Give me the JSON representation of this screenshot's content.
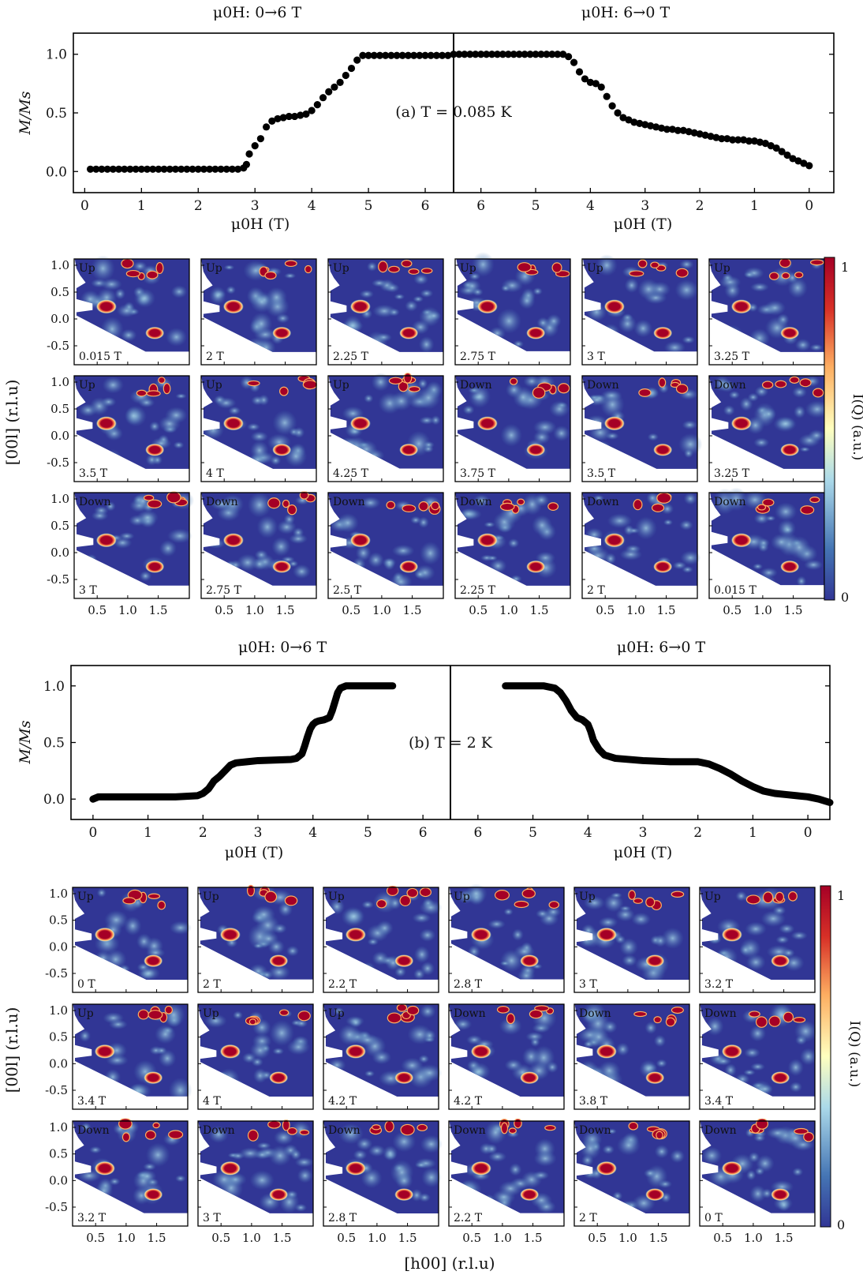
{
  "colorbar": {
    "max_label": "1",
    "min_label": "0",
    "label": "I(Q) (a.u.)",
    "colors": [
      "#313695",
      "#4575b4",
      "#abd9e9",
      "#ffffbf",
      "#fdae61",
      "#d73027",
      "#a50026"
    ]
  },
  "chart_data": [
    {
      "type": "scatter",
      "panel": "a",
      "title_left": "μ0H: 0→6 T",
      "title_right": "μ0H: 6→0 T",
      "annotation": "(a) T = 0.085 K",
      "xlabel_left": "μ0H (T)",
      "xlabel_right": "μ0H (T)",
      "ylabel": "M/Ms",
      "ylim": [
        -0.18,
        1.18
      ],
      "yticks": [
        0.0,
        0.5,
        1.0
      ],
      "xlim_left": [
        -0.2,
        6.5
      ],
      "xlim_right": [
        6.5,
        -0.45
      ],
      "xticks_left": [
        0,
        1,
        2,
        3,
        4,
        5,
        6
      ],
      "xticks_right": [
        6,
        5,
        4,
        3,
        2,
        1,
        0
      ],
      "series_up": {
        "x": [
          0.1,
          0.2,
          0.3,
          0.4,
          0.5,
          0.6,
          0.7,
          0.8,
          0.9,
          1.0,
          1.1,
          1.2,
          1.3,
          1.4,
          1.5,
          1.6,
          1.7,
          1.8,
          1.9,
          2.0,
          2.1,
          2.2,
          2.3,
          2.4,
          2.5,
          2.6,
          2.7,
          2.8,
          2.85,
          2.9,
          3.0,
          3.1,
          3.2,
          3.3,
          3.4,
          3.5,
          3.6,
          3.7,
          3.8,
          3.9,
          4.0,
          4.1,
          4.2,
          4.3,
          4.4,
          4.5,
          4.6,
          4.7,
          4.8,
          4.9,
          5.0,
          5.1,
          5.2,
          5.3,
          5.4,
          5.5,
          5.6,
          5.7,
          5.8,
          5.9,
          6.0,
          6.1,
          6.2,
          6.3,
          6.4
        ],
        "y": [
          0.02,
          0.02,
          0.02,
          0.02,
          0.02,
          0.02,
          0.02,
          0.02,
          0.02,
          0.02,
          0.02,
          0.02,
          0.02,
          0.02,
          0.02,
          0.02,
          0.02,
          0.02,
          0.02,
          0.02,
          0.02,
          0.02,
          0.02,
          0.02,
          0.02,
          0.02,
          0.02,
          0.03,
          0.06,
          0.15,
          0.22,
          0.28,
          0.38,
          0.43,
          0.45,
          0.46,
          0.47,
          0.47,
          0.48,
          0.49,
          0.52,
          0.57,
          0.63,
          0.68,
          0.72,
          0.76,
          0.82,
          0.88,
          0.95,
          0.99,
          0.99,
          0.99,
          0.99,
          0.99,
          0.99,
          0.99,
          0.99,
          0.99,
          0.99,
          0.99,
          0.99,
          0.99,
          0.99,
          0.99,
          0.99
        ]
      },
      "series_down": {
        "x": [
          6.5,
          6.4,
          6.3,
          6.2,
          6.1,
          6.0,
          5.9,
          5.8,
          5.7,
          5.6,
          5.5,
          5.4,
          5.3,
          5.2,
          5.1,
          5.0,
          4.9,
          4.8,
          4.7,
          4.6,
          4.5,
          4.4,
          4.3,
          4.2,
          4.1,
          4.0,
          3.9,
          3.8,
          3.7,
          3.6,
          3.5,
          3.4,
          3.3,
          3.2,
          3.1,
          3.0,
          2.9,
          2.8,
          2.7,
          2.6,
          2.5,
          2.4,
          2.3,
          2.2,
          2.1,
          2.0,
          1.9,
          1.8,
          1.7,
          1.6,
          1.5,
          1.4,
          1.3,
          1.2,
          1.1,
          1.0,
          0.9,
          0.8,
          0.7,
          0.6,
          0.5,
          0.4,
          0.3,
          0.2,
          0.1,
          0.0
        ],
        "y": [
          1.0,
          1.0,
          1.0,
          1.0,
          1.0,
          1.0,
          1.0,
          1.0,
          1.0,
          1.0,
          1.0,
          1.0,
          1.0,
          1.0,
          1.0,
          1.0,
          1.0,
          1.0,
          1.0,
          1.0,
          1.0,
          0.98,
          0.93,
          0.85,
          0.79,
          0.76,
          0.75,
          0.72,
          0.64,
          0.56,
          0.5,
          0.46,
          0.44,
          0.42,
          0.41,
          0.4,
          0.39,
          0.38,
          0.37,
          0.36,
          0.36,
          0.35,
          0.35,
          0.34,
          0.33,
          0.32,
          0.31,
          0.3,
          0.29,
          0.28,
          0.28,
          0.27,
          0.27,
          0.27,
          0.26,
          0.26,
          0.25,
          0.24,
          0.22,
          0.2,
          0.17,
          0.14,
          0.11,
          0.09,
          0.07,
          0.05
        ]
      }
    },
    {
      "type": "line",
      "panel": "b",
      "title_left": "μ0H: 0→6 T",
      "title_right": "μ0H: 6→0 T",
      "annotation": "(b) T = 2 K",
      "xlabel_left": "μ0H (T)",
      "xlabel_right": "μ0H (T)",
      "ylabel": "M/Ms",
      "ylim": [
        -0.18,
        1.18
      ],
      "yticks": [
        0.0,
        0.5,
        1.0
      ],
      "xlim_left": [
        -0.4,
        6.5
      ],
      "xlim_right": [
        6.5,
        -0.4
      ],
      "xticks_left": [
        0,
        1,
        2,
        3,
        4,
        5,
        6
      ],
      "xticks_right": [
        6,
        5,
        4,
        3,
        2,
        1,
        0
      ],
      "series_up": {
        "x": [
          0.0,
          0.1,
          0.5,
          1.0,
          1.5,
          1.9,
          2.0,
          2.1,
          2.2,
          2.3,
          2.4,
          2.5,
          2.6,
          2.8,
          3.0,
          3.3,
          3.6,
          3.7,
          3.8,
          3.85,
          3.9,
          3.95,
          4.0,
          4.05,
          4.1,
          4.2,
          4.3,
          4.35,
          4.4,
          4.45,
          4.5,
          4.6,
          4.8,
          5.0,
          5.2,
          5.45
        ],
        "y": [
          0.0,
          0.02,
          0.02,
          0.02,
          0.02,
          0.03,
          0.05,
          0.09,
          0.16,
          0.2,
          0.25,
          0.3,
          0.32,
          0.33,
          0.34,
          0.345,
          0.35,
          0.36,
          0.4,
          0.47,
          0.55,
          0.62,
          0.66,
          0.68,
          0.69,
          0.7,
          0.72,
          0.78,
          0.86,
          0.94,
          0.98,
          1.0,
          1.0,
          1.0,
          1.0,
          1.0
        ]
      },
      "series_down": {
        "x": [
          5.5,
          5.2,
          5.0,
          4.8,
          4.6,
          4.5,
          4.4,
          4.3,
          4.2,
          4.1,
          4.0,
          3.95,
          3.9,
          3.8,
          3.7,
          3.5,
          3.0,
          2.5,
          2.0,
          1.8,
          1.6,
          1.4,
          1.2,
          1.0,
          0.8,
          0.6,
          0.4,
          0.2,
          0.0,
          -0.2,
          -0.4
        ],
        "y": [
          1.0,
          1.0,
          1.0,
          1.0,
          0.98,
          0.94,
          0.87,
          0.78,
          0.72,
          0.7,
          0.66,
          0.6,
          0.52,
          0.44,
          0.39,
          0.36,
          0.34,
          0.33,
          0.33,
          0.31,
          0.27,
          0.22,
          0.16,
          0.11,
          0.07,
          0.05,
          0.04,
          0.03,
          0.02,
          0.0,
          -0.03
        ]
      }
    },
    {
      "type": "heatmap",
      "panel": "a-maps",
      "xlabel": "",
      "ylabel": "[00l] (r.l.u)",
      "xticks": [
        0.5,
        1.0,
        1.5
      ],
      "yticks": [
        1.0,
        0.5,
        0.0,
        -0.5
      ],
      "rows": [
        [
          {
            "dir": "Up",
            "field": "0.015 T"
          },
          {
            "dir": "Up",
            "field": "2 T"
          },
          {
            "dir": "Up",
            "field": "2.25 T"
          },
          {
            "dir": "Up",
            "field": "2.75 T"
          },
          {
            "dir": "Up",
            "field": "3 T"
          },
          {
            "dir": "Up",
            "field": "3.25 T"
          }
        ],
        [
          {
            "dir": "Up",
            "field": "3.5 T"
          },
          {
            "dir": "Up",
            "field": "4 T"
          },
          {
            "dir": "Up",
            "field": "4.25 T"
          },
          {
            "dir": "Down",
            "field": "3.75 T"
          },
          {
            "dir": "Down",
            "field": "3.5 T"
          },
          {
            "dir": "Down",
            "field": "3.25 T"
          }
        ],
        [
          {
            "dir": "Down",
            "field": "3 T"
          },
          {
            "dir": "Down",
            "field": "2.75 T"
          },
          {
            "dir": "Down",
            "field": "2.5 T"
          },
          {
            "dir": "Down",
            "field": "2.25 T"
          },
          {
            "dir": "Down",
            "field": "2 T"
          },
          {
            "dir": "Down",
            "field": "0.015 T"
          }
        ]
      ]
    },
    {
      "type": "heatmap",
      "panel": "b-maps",
      "xlabel": "[h00] (r.l.u)",
      "ylabel": "[00l] (r.l.u)",
      "xticks": [
        0.5,
        1.0,
        1.5
      ],
      "yticks": [
        1.0,
        0.5,
        0.0,
        -0.5
      ],
      "rows": [
        [
          {
            "dir": "Up",
            "field": "0 T"
          },
          {
            "dir": "Up",
            "field": "2 T"
          },
          {
            "dir": "Up",
            "field": "2.2 T"
          },
          {
            "dir": "Up",
            "field": "2.8 T"
          },
          {
            "dir": "Up",
            "field": "3 T"
          },
          {
            "dir": "Up",
            "field": "3.2 T"
          }
        ],
        [
          {
            "dir": "Up",
            "field": "3.4 T"
          },
          {
            "dir": "Up",
            "field": "4 T"
          },
          {
            "dir": "Up",
            "field": "4.2 T"
          },
          {
            "dir": "Down",
            "field": "4.2 T"
          },
          {
            "dir": "Down",
            "field": "3.8 T"
          },
          {
            "dir": "Down",
            "field": "3.4 T"
          }
        ],
        [
          {
            "dir": "Down",
            "field": "3.2 T"
          },
          {
            "dir": "Down",
            "field": "3 T"
          },
          {
            "dir": "Down",
            "field": "2.8 T"
          },
          {
            "dir": "Down",
            "field": "2.2 T"
          },
          {
            "dir": "Down",
            "field": "2 T"
          },
          {
            "dir": "Down",
            "field": "0 T"
          }
        ]
      ]
    }
  ]
}
